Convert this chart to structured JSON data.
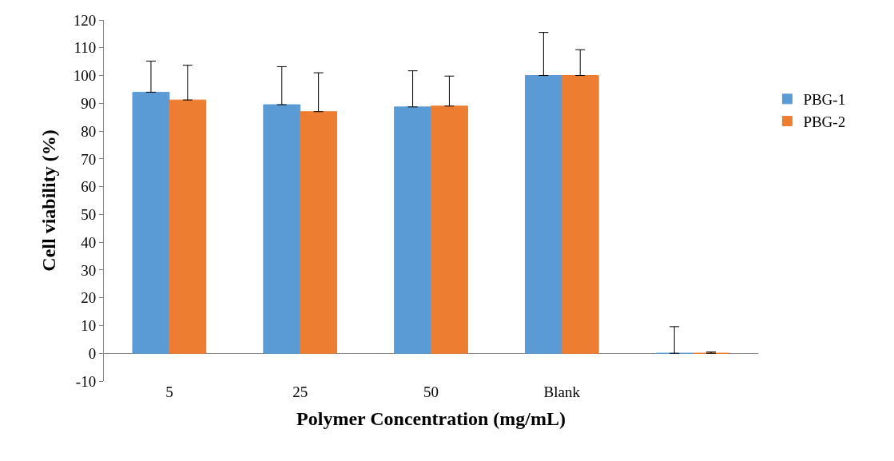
{
  "chart_data": {
    "type": "bar",
    "xlabel": "Polymer Concentration (mg/mL)",
    "ylabel": "Cell viability (%)",
    "categories": [
      "5",
      "25",
      "50",
      "Blank",
      null
    ],
    "series": [
      {
        "name": "PBG-1",
        "color": "#5b9bd5",
        "values": [
          94,
          89.5,
          88.7,
          100,
          0
        ],
        "errors": [
          [
            94,
            105.2
          ],
          [
            89.5,
            103.2
          ],
          [
            88.7,
            101.7
          ],
          [
            100,
            115.5
          ],
          [
            0,
            9.6
          ]
        ]
      },
      {
        "name": "PBG-2",
        "color": "#ed7d31",
        "values": [
          91.2,
          87,
          89,
          100,
          0
        ],
        "errors": [
          [
            91.2,
            103.7
          ],
          [
            87,
            101
          ],
          [
            89,
            99.8
          ],
          [
            100,
            109.3
          ],
          [
            0,
            0.5
          ]
        ]
      }
    ],
    "ylim": [
      -10,
      120
    ],
    "yticks": [
      -10,
      0,
      10,
      20,
      30,
      40,
      50,
      60,
      70,
      80,
      90,
      100,
      110,
      120
    ],
    "legend": "right"
  }
}
